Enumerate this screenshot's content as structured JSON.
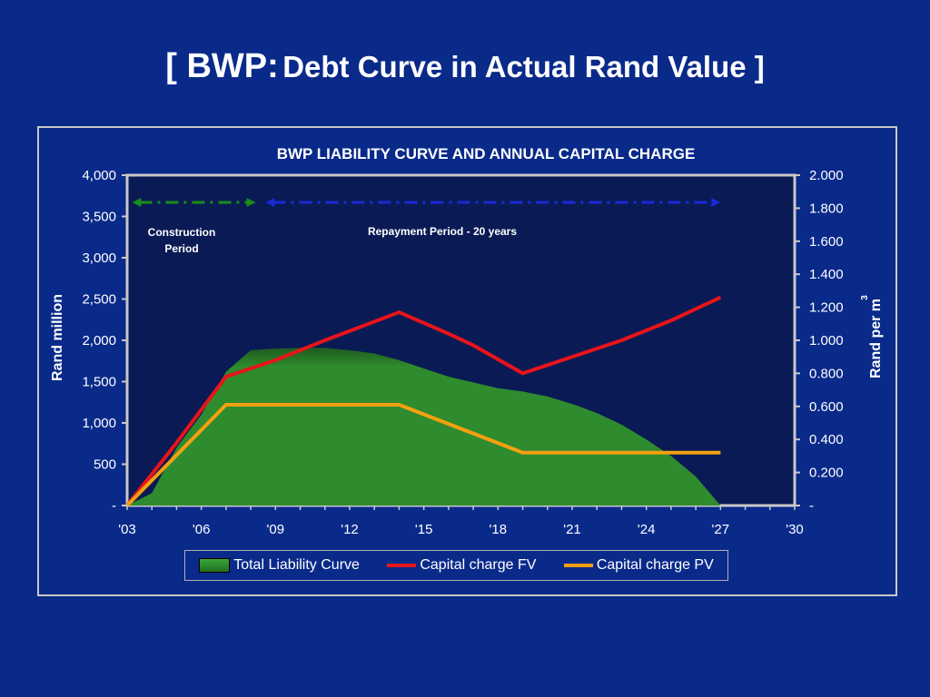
{
  "slide": {
    "title_bracket_open": "[ BWP:",
    "title_rest": "Debt Curve in Actual Rand Value ]"
  },
  "colors": {
    "background": "#0a2a8a",
    "plot_background": "#0a1a55",
    "liability_fill": "#2e8b2e",
    "capital_fv": "#e8141a",
    "capital_pv": "#f5a010",
    "construction_arrow": "#1a8c1a",
    "repayment_arrow": "#1a2ad8"
  },
  "chart_data": {
    "type": "area",
    "title": "BWP LIABILITY CURVE AND ANNUAL CAPITAL CHARGE",
    "ylabel": "Rand million",
    "ylabel_right": "Rand per m",
    "ylabel_right_sup": "3",
    "x_ticks": [
      "'03",
      "'06",
      "'09",
      "'12",
      "'15",
      "'18",
      "'21",
      "'24",
      "'27",
      "'30"
    ],
    "x_range": [
      2003,
      2030
    ],
    "y_left_ticks": [
      "-",
      "500",
      "1,000",
      "1,500",
      "2,000",
      "2,500",
      "3,000",
      "3,500",
      "4,000"
    ],
    "y_left_range": [
      0,
      4000
    ],
    "y_right_ticks": [
      "-",
      "0.200",
      "0.400",
      "0.600",
      "0.800",
      "1.000",
      "1.200",
      "1.400",
      "1.600",
      "1.800",
      "2.000"
    ],
    "y_right_range": [
      0,
      2.0
    ],
    "annotations": {
      "construction": [
        "Construction",
        "Period"
      ],
      "repayment": "Repayment Period - 20 years"
    },
    "series": [
      {
        "name": "Total Liability Curve",
        "axis": "left",
        "type": "area",
        "points": [
          [
            2003,
            0
          ],
          [
            2004,
            150
          ],
          [
            2005,
            700
          ],
          [
            2006,
            1100
          ],
          [
            2007,
            1620
          ],
          [
            2008,
            1880
          ],
          [
            2009,
            1900
          ],
          [
            2010,
            1910
          ],
          [
            2011,
            1910
          ],
          [
            2012,
            1880
          ],
          [
            2013,
            1840
          ],
          [
            2014,
            1760
          ],
          [
            2015,
            1660
          ],
          [
            2016,
            1560
          ],
          [
            2017,
            1490
          ],
          [
            2018,
            1420
          ],
          [
            2019,
            1380
          ],
          [
            2020,
            1320
          ],
          [
            2021,
            1230
          ],
          [
            2022,
            1120
          ],
          [
            2023,
            980
          ],
          [
            2024,
            800
          ],
          [
            2025,
            600
          ],
          [
            2026,
            350
          ],
          [
            2027,
            0
          ]
        ]
      },
      {
        "name": "Capital charge FV",
        "axis": "right",
        "type": "line",
        "points": [
          [
            2003,
            0
          ],
          [
            2005,
            0.38
          ],
          [
            2007,
            0.78
          ],
          [
            2009,
            0.88
          ],
          [
            2011,
            1.0
          ],
          [
            2014,
            1.17
          ],
          [
            2016,
            1.04
          ],
          [
            2017,
            0.97
          ],
          [
            2019,
            0.8
          ],
          [
            2020,
            0.85
          ],
          [
            2023,
            1.0
          ],
          [
            2025,
            1.12
          ],
          [
            2027,
            1.26
          ]
        ]
      },
      {
        "name": "Capital charge PV",
        "axis": "right",
        "type": "line",
        "points": [
          [
            2003,
            0
          ],
          [
            2007,
            0.61
          ],
          [
            2014,
            0.61
          ],
          [
            2019,
            0.32
          ],
          [
            2027,
            0.32
          ]
        ]
      }
    ],
    "legend_position": "bottom"
  }
}
